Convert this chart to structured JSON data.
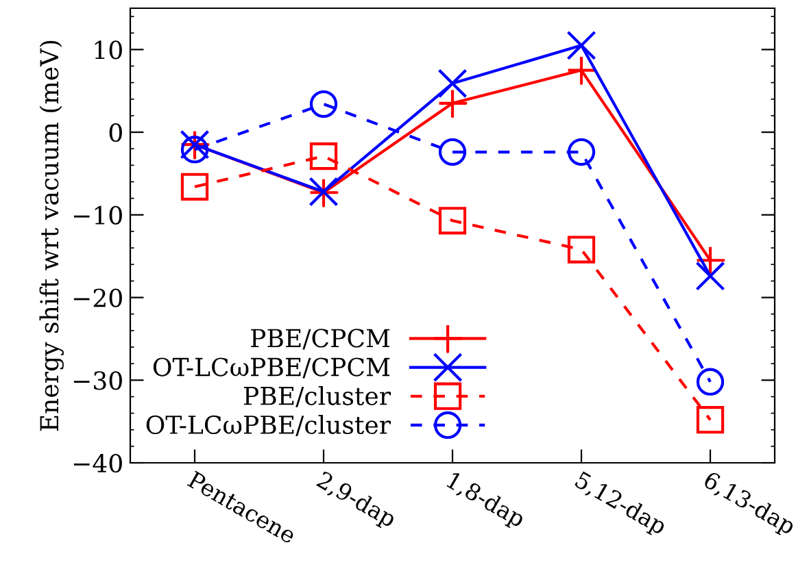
{
  "chart_data": {
    "type": "line",
    "ylabel": "Energy shift wrt vacuum (meV)",
    "categories": [
      "Pentacene",
      "2,9-dap",
      "1,8-dap",
      "5,12-dap",
      "6,13-dap"
    ],
    "series": [
      {
        "name": "PBE/CPCM",
        "color": "#ff0000",
        "marker": "cross",
        "line_style": "solid",
        "values": [
          -1.5,
          -7.3,
          3.5,
          7.5,
          -15.5
        ]
      },
      {
        "name": "OT-LCωPBE/CPCM",
        "color": "#0000ff",
        "marker": "cross",
        "line_style": "solid",
        "values": [
          -1.5,
          -7.2,
          5.9,
          10.5,
          -17.4
        ]
      },
      {
        "name": "PBE/cluster",
        "color": "#ff0000",
        "marker": "square",
        "line_style": "dashed",
        "values": [
          -6.6,
          -2.9,
          -10.7,
          -14.2,
          -34.8
        ]
      },
      {
        "name": "OT-LCωPBE/cluster",
        "color": "#0000ff",
        "marker": "circle",
        "line_style": "dashed",
        "values": [
          -2.1,
          3.4,
          -2.4,
          -2.4,
          -30.2
        ]
      }
    ],
    "ylim": [
      -40,
      15
    ],
    "yticks": [
      -40,
      -30,
      -20,
      -10,
      0,
      10
    ],
    "grid": false,
    "legend": "bottom left"
  }
}
